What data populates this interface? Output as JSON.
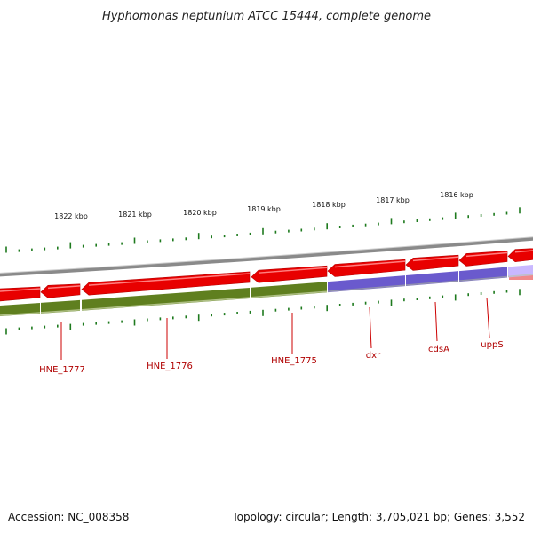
{
  "title": "Hyphomonas neptunium ATCC 15444, complete genome",
  "footer": {
    "accession": "Accession: NC_008358",
    "summary": "Topology: circular; Length: 3,705,021 bp; Genes: 3,552"
  },
  "scale": {
    "labels": [
      "1822 kbp",
      "1821 kbp",
      "1820 kbp",
      "1819 kbp",
      "1818 kbp",
      "1817 kbp",
      "1816 kbp"
    ]
  },
  "genes": [
    {
      "label": "HNE_1777"
    },
    {
      "label": "HNE_1776"
    },
    {
      "label": "HNE_1775"
    },
    {
      "label": "dxr"
    },
    {
      "label": "cdsA"
    },
    {
      "label": "uppS"
    }
  ],
  "colors": {
    "gene_forward": "#e80000",
    "cds_olive": "#5f7f1f",
    "cds_purple": "#6a5acd",
    "backbone": "#8a8a8a",
    "tick": "#1e7a1e",
    "label": "#b00000",
    "label_line": "#cc0000"
  }
}
